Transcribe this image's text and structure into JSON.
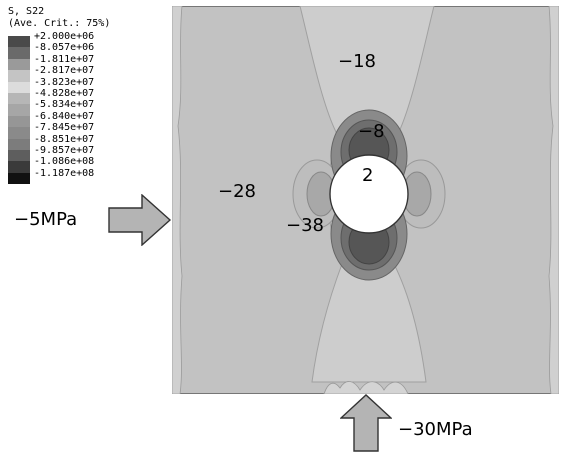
{
  "legend": {
    "title_line1": "S, S22",
    "title_line2": "(Ave. Crit.: 75%)",
    "entries": [
      {
        "label": "+2.000e+06",
        "color": "#4a4a4a"
      },
      {
        "label": "-8.057e+06",
        "color": "#6a6a6a"
      },
      {
        "label": "-1.811e+07",
        "color": "#9a9a9a"
      },
      {
        "label": "-2.817e+07",
        "color": "#c4c4c4"
      },
      {
        "label": "-3.823e+07",
        "color": "#dcdcdc"
      },
      {
        "label": "-4.828e+07",
        "color": "#b6b6b6"
      },
      {
        "label": "-5.834e+07",
        "color": "#a6a6a6"
      },
      {
        "label": "-6.840e+07",
        "color": "#969696"
      },
      {
        "label": "-7.845e+07",
        "color": "#8a8a8a"
      },
      {
        "label": "-8.851e+07",
        "color": "#7c7c7c"
      },
      {
        "label": "-9.857e+07",
        "color": "#5e5e5e"
      },
      {
        "label": "-1.086e+08",
        "color": "#3a3a3a"
      },
      {
        "label": "-1.187e+08",
        "color": "#111111"
      }
    ]
  },
  "contour_labels": {
    "l_minus18": "−18",
    "l_minus8": "−8",
    "l_plus2": "2",
    "l_minus28": "−28",
    "l_minus38": "−38"
  },
  "loads": {
    "side_pressure": "−5MPa",
    "bottom_pressure": "−30MPa"
  },
  "colors": {
    "field": "#c2c2c2",
    "band_light": "#cfcfcf",
    "band_mid": "#9e9e9e",
    "band_dark": "#6a6a6a",
    "arrow_fill": "#b4b4b4"
  }
}
